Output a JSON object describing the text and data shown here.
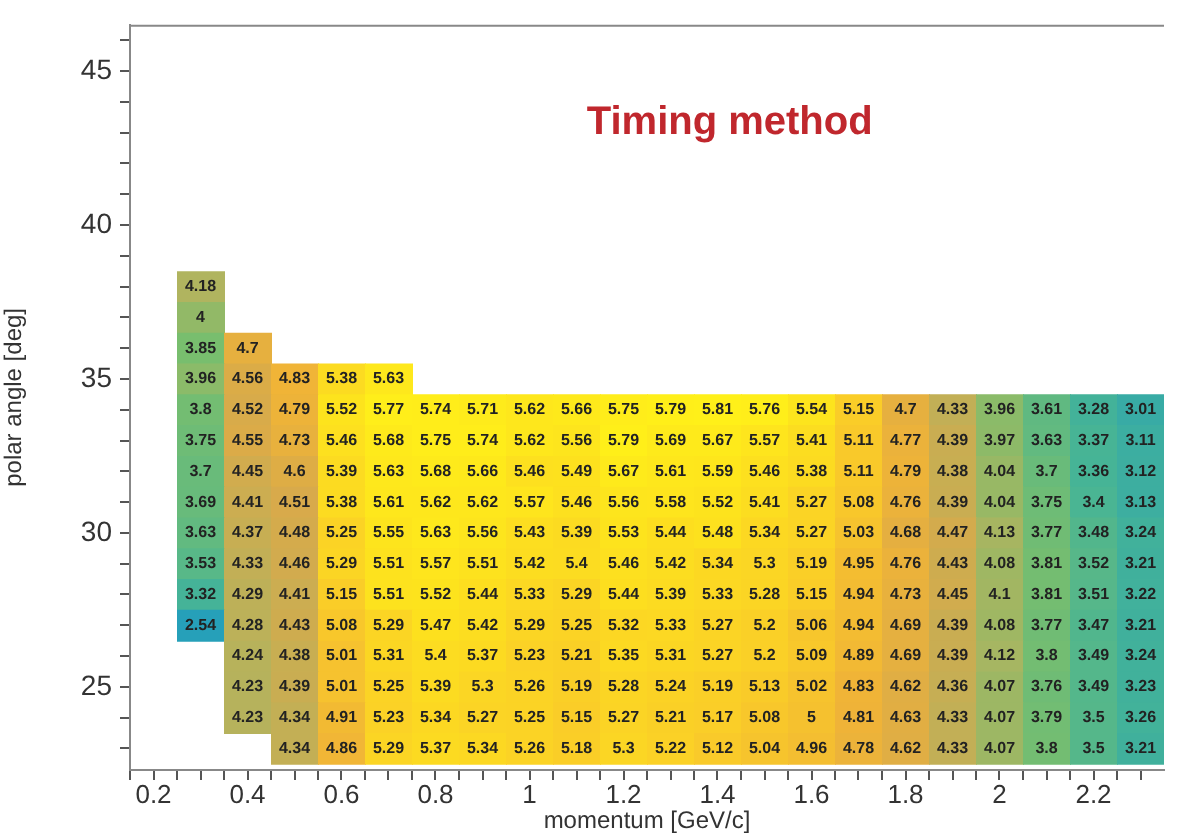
{
  "chart_data": {
    "type": "heatmap",
    "title": "Timing method",
    "xlabel": "momentum [GeV/c]",
    "ylabel": "polar angle [deg]",
    "x": [
      0.3,
      0.4,
      0.5,
      0.6,
      0.7,
      0.8,
      0.9,
      1.0,
      1.1,
      1.2,
      1.3,
      1.4,
      1.5,
      1.6,
      1.7,
      1.8,
      1.9,
      2.0,
      2.1,
      2.2,
      2.3
    ],
    "y": [
      38,
      37,
      36,
      35,
      34,
      33,
      32,
      31,
      30,
      29,
      28,
      27,
      26,
      25,
      24,
      23
    ],
    "cells": [
      [
        4.18,
        null,
        null,
        null,
        null,
        null,
        null,
        null,
        null,
        null,
        null,
        null,
        null,
        null,
        null,
        null,
        null,
        null,
        null,
        null,
        null
      ],
      [
        4,
        null,
        null,
        null,
        null,
        null,
        null,
        null,
        null,
        null,
        null,
        null,
        null,
        null,
        null,
        null,
        null,
        null,
        null,
        null,
        null
      ],
      [
        3.85,
        4.7,
        null,
        null,
        null,
        null,
        null,
        null,
        null,
        null,
        null,
        null,
        null,
        null,
        null,
        null,
        null,
        null,
        null,
        null,
        null
      ],
      [
        3.96,
        4.56,
        4.83,
        5.38,
        5.63,
        null,
        null,
        null,
        null,
        null,
        null,
        null,
        null,
        null,
        null,
        null,
        null,
        null,
        null,
        null,
        null
      ],
      [
        3.8,
        4.52,
        4.79,
        5.52,
        5.77,
        5.74,
        5.71,
        5.62,
        5.66,
        5.75,
        5.79,
        5.81,
        5.76,
        5.54,
        5.15,
        4.7,
        4.33,
        3.96,
        3.61,
        3.28,
        3.01
      ],
      [
        3.75,
        4.55,
        4.73,
        5.46,
        5.68,
        5.75,
        5.74,
        5.62,
        5.56,
        5.79,
        5.69,
        5.67,
        5.57,
        5.41,
        5.11,
        4.77,
        4.39,
        3.97,
        3.63,
        3.37,
        3.11
      ],
      [
        3.7,
        4.45,
        4.6,
        5.39,
        5.63,
        5.68,
        5.66,
        5.46,
        5.49,
        5.67,
        5.61,
        5.59,
        5.46,
        5.38,
        5.11,
        4.79,
        4.38,
        4.04,
        3.7,
        3.36,
        3.12
      ],
      [
        3.69,
        4.41,
        4.51,
        5.38,
        5.61,
        5.62,
        5.62,
        5.57,
        5.46,
        5.56,
        5.58,
        5.52,
        5.41,
        5.27,
        5.08,
        4.76,
        4.39,
        4.04,
        3.75,
        3.4,
        3.13
      ],
      [
        3.63,
        4.37,
        4.48,
        5.25,
        5.55,
        5.63,
        5.56,
        5.43,
        5.39,
        5.53,
        5.44,
        5.48,
        5.34,
        5.27,
        5.03,
        4.68,
        4.47,
        4.13,
        3.77,
        3.48,
        3.24
      ],
      [
        3.53,
        4.33,
        4.46,
        5.29,
        5.51,
        5.57,
        5.51,
        5.42,
        5.4,
        5.46,
        5.42,
        5.34,
        5.3,
        5.19,
        4.95,
        4.76,
        4.43,
        4.08,
        3.81,
        3.52,
        3.21
      ],
      [
        3.32,
        4.29,
        4.41,
        5.15,
        5.51,
        5.52,
        5.44,
        5.33,
        5.29,
        5.44,
        5.39,
        5.33,
        5.28,
        5.15,
        4.94,
        4.73,
        4.45,
        4.1,
        3.81,
        3.51,
        3.22
      ],
      [
        2.54,
        4.28,
        4.43,
        5.08,
        5.29,
        5.47,
        5.42,
        5.29,
        5.25,
        5.32,
        5.33,
        5.27,
        5.2,
        5.06,
        4.94,
        4.69,
        4.39,
        4.08,
        3.77,
        3.47,
        3.21
      ],
      [
        null,
        4.24,
        4.38,
        5.01,
        5.31,
        5.4,
        5.37,
        5.23,
        5.21,
        5.35,
        5.31,
        5.27,
        5.2,
        5.09,
        4.89,
        4.69,
        4.39,
        4.12,
        3.8,
        3.49,
        3.24
      ],
      [
        null,
        4.23,
        4.39,
        5.01,
        5.25,
        5.39,
        5.3,
        5.26,
        5.19,
        5.28,
        5.24,
        5.19,
        5.13,
        5.02,
        4.83,
        4.62,
        4.36,
        4.07,
        3.76,
        3.49,
        3.23
      ],
      [
        null,
        4.23,
        4.34,
        4.91,
        5.23,
        5.34,
        5.27,
        5.25,
        5.15,
        5.27,
        5.21,
        5.17,
        5.08,
        5,
        4.81,
        4.63,
        4.33,
        4.07,
        3.79,
        3.5,
        3.26
      ],
      [
        null,
        null,
        4.34,
        4.86,
        5.29,
        5.37,
        5.34,
        5.26,
        5.18,
        5.3,
        5.22,
        5.12,
        5.04,
        4.96,
        4.78,
        4.62,
        4.33,
        4.07,
        3.8,
        3.5,
        3.21
      ]
    ],
    "data_labels": true,
    "xlim": [
      0.15,
      2.35
    ],
    "xticks": [
      {
        "value": 0.15,
        "label": null
      },
      0.2,
      {
        "value": 0.25,
        "label": null
      },
      {
        "value": 0.3,
        "label": null
      },
      {
        "value": 0.35,
        "label": null
      },
      0.4,
      {
        "value": 0.45,
        "label": null
      },
      {
        "value": 0.5,
        "label": null
      },
      {
        "value": 0.55,
        "label": null
      },
      0.6,
      {
        "value": 0.65,
        "label": null
      },
      {
        "value": 0.7,
        "label": null
      },
      {
        "value": 0.75,
        "label": null
      },
      0.8,
      {
        "value": 0.85,
        "label": null
      },
      {
        "value": 0.9,
        "label": null
      },
      {
        "value": 0.95,
        "label": null
      },
      1,
      {
        "value": 1.05,
        "label": null
      },
      {
        "value": 1.1,
        "label": null
      },
      {
        "value": 1.15,
        "label": null
      },
      1.2,
      {
        "value": 1.25,
        "label": null
      },
      {
        "value": 1.3,
        "label": null
      },
      {
        "value": 1.35,
        "label": null
      },
      1.4,
      {
        "value": 1.45,
        "label": null
      },
      {
        "value": 1.5,
        "label": null
      },
      {
        "value": 1.55,
        "label": null
      },
      1.6,
      {
        "value": 1.65,
        "label": null
      },
      {
        "value": 1.7,
        "label": null
      },
      {
        "value": 1.75,
        "label": null
      },
      1.8,
      {
        "value": 1.85,
        "label": null
      },
      {
        "value": 1.9,
        "label": null
      },
      {
        "value": 1.95,
        "label": null
      },
      2,
      {
        "value": 2.05,
        "label": null
      },
      {
        "value": 2.1,
        "label": null
      },
      {
        "value": 2.15,
        "label": null
      },
      2.2,
      {
        "value": 2.25,
        "label": null
      },
      {
        "value": 2.3,
        "label": null
      }
    ],
    "ylim": [
      22.3,
      46.5
    ],
    "yticks": [
      {
        "value": 23,
        "label": null
      },
      {
        "value": 24,
        "label": null
      },
      25,
      {
        "value": 26,
        "label": null
      },
      {
        "value": 27,
        "label": null
      },
      {
        "value": 28,
        "label": null
      },
      {
        "value": 29,
        "label": null
      },
      30,
      {
        "value": 31,
        "label": null
      },
      {
        "value": 32,
        "label": null
      },
      {
        "value": 33,
        "label": null
      },
      {
        "value": 34,
        "label": null
      },
      35,
      {
        "value": 36,
        "label": null
      },
      {
        "value": 37,
        "label": null
      },
      {
        "value": 38,
        "label": null
      },
      {
        "value": 39,
        "label": null
      },
      40,
      {
        "value": 41,
        "label": null
      },
      {
        "value": 42,
        "label": null
      },
      {
        "value": 43,
        "label": null
      },
      {
        "value": 44,
        "label": null
      },
      45,
      {
        "value": 46,
        "label": null
      }
    ]
  }
}
